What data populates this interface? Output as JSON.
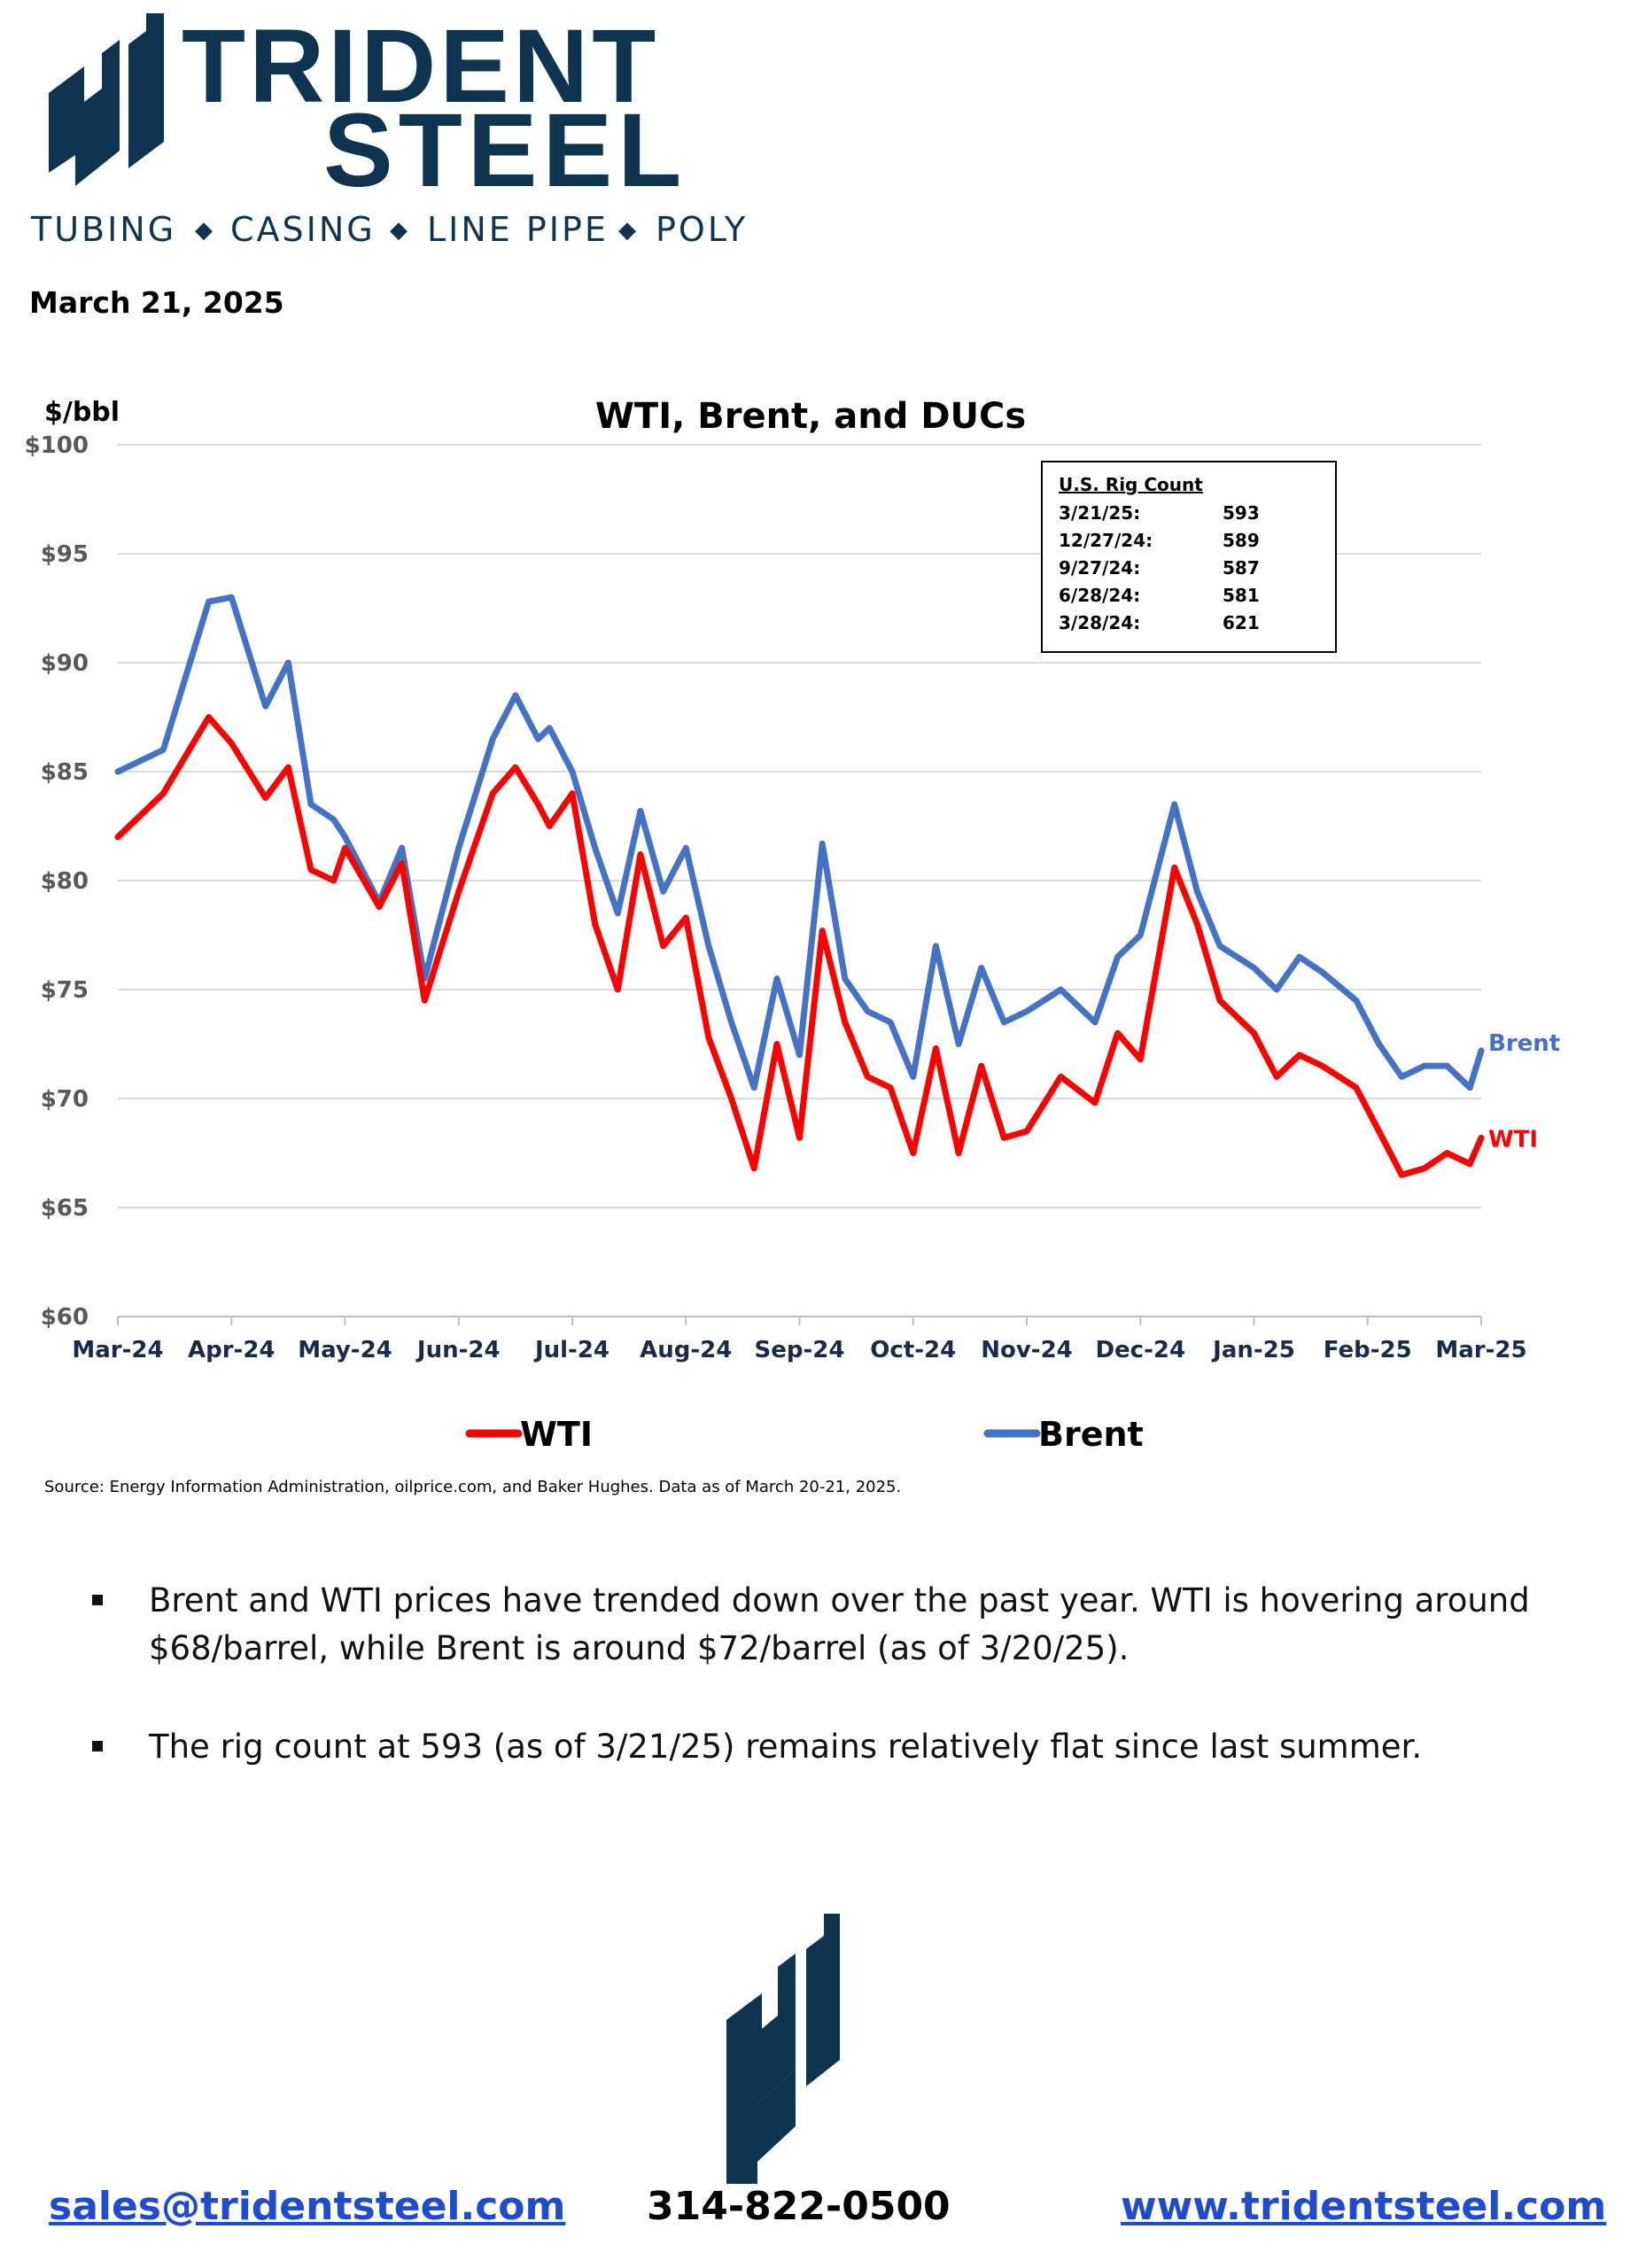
{
  "company": {
    "logo_name": "TRIDENT",
    "logo_name2": "STEEL",
    "tagline_items": [
      "TUBING",
      "CASING",
      "LINE PIPE",
      "POLY"
    ],
    "brand_color": "#0f3450"
  },
  "date": "March 21, 2025",
  "chart_data": {
    "type": "line",
    "title": "WTI, Brent, and DUCs",
    "ylabel": "$/bbl",
    "xlabel": "",
    "ylim": [
      60,
      100
    ],
    "y_ticks": [
      "$60",
      "$65",
      "$70",
      "$75",
      "$80",
      "$85",
      "$90",
      "$95",
      "$100"
    ],
    "x_ticks": [
      "Mar-24",
      "Apr-24",
      "May-24",
      "Jun-24",
      "Jul-24",
      "Aug-24",
      "Sep-24",
      "Oct-24",
      "Nov-24",
      "Dec-24",
      "Jan-25",
      "Feb-25",
      "Mar-25"
    ],
    "grid": true,
    "x_month_index": [
      0,
      0.4,
      0.8,
      1.0,
      1.3,
      1.5,
      1.7,
      1.9,
      2.0,
      2.3,
      2.5,
      2.7,
      3.0,
      3.3,
      3.5,
      3.7,
      3.8,
      4.0,
      4.2,
      4.4,
      4.6,
      4.8,
      5.0,
      5.2,
      5.4,
      5.6,
      5.8,
      6.0,
      6.2,
      6.4,
      6.6,
      6.8,
      7.0,
      7.2,
      7.4,
      7.6,
      7.8,
      8.0,
      8.3,
      8.6,
      8.8,
      9.0,
      9.3,
      9.5,
      9.7,
      10.0,
      10.2,
      10.4,
      10.6,
      10.9,
      11.1,
      11.3,
      11.5,
      11.7,
      11.9,
      12.0
    ],
    "series": [
      {
        "name": "WTI",
        "color": "#ff0000",
        "values": [
          82.0,
          84.0,
          87.5,
          86.3,
          83.8,
          85.2,
          80.5,
          80.0,
          81.5,
          78.8,
          80.8,
          74.5,
          79.5,
          84.0,
          85.2,
          83.5,
          82.5,
          84.0,
          78.0,
          75.0,
          81.2,
          77.0,
          78.3,
          72.8,
          70.0,
          66.8,
          72.5,
          68.2,
          77.7,
          73.5,
          71.0,
          70.5,
          67.5,
          72.3,
          67.5,
          71.5,
          68.2,
          68.5,
          71.0,
          69.8,
          73.0,
          71.8,
          80.6,
          78.0,
          74.5,
          73.0,
          71.0,
          72.0,
          71.5,
          70.5,
          68.5,
          66.5,
          66.8,
          67.5,
          67.0,
          68.2
        ],
        "end_label": "WTI"
      },
      {
        "name": "Brent",
        "color": "#4472c4",
        "values": [
          85.0,
          86.0,
          92.8,
          93.0,
          88.0,
          90.0,
          83.5,
          82.8,
          82.0,
          79.0,
          81.5,
          75.5,
          81.5,
          86.5,
          88.5,
          86.5,
          87.0,
          85.0,
          81.5,
          78.5,
          83.2,
          79.5,
          81.5,
          77.0,
          73.5,
          70.5,
          75.5,
          72.0,
          81.7,
          75.5,
          74.0,
          73.5,
          71.0,
          77.0,
          72.5,
          76.0,
          73.5,
          74.0,
          75.0,
          73.5,
          76.5,
          77.5,
          83.5,
          79.5,
          77.0,
          76.0,
          75.0,
          76.5,
          75.8,
          74.5,
          72.5,
          71.0,
          71.5,
          71.5,
          70.5,
          72.2
        ],
        "end_label": "Brent"
      }
    ]
  },
  "rig_box": {
    "title": "U.S. Rig Count",
    "rows": [
      {
        "date": "3/21/25:",
        "value": "593"
      },
      {
        "date": "12/27/24:",
        "value": "589"
      },
      {
        "date": "9/27/24:",
        "value": "587"
      },
      {
        "date": "6/28/24:",
        "value": "581"
      },
      {
        "date": "3/28/24:",
        "value": "621"
      }
    ]
  },
  "legend": [
    {
      "label": "WTI",
      "color": "#ff0000"
    },
    {
      "label": "Brent",
      "color": "#4472c4"
    }
  ],
  "source": "Source: Energy Information Administration, oilprice.com, and Baker Hughes.  Data as of March 20-21, 2025.",
  "bullets": [
    {
      "line1": "Brent and WTI prices have trended down over the past year.  WTI is hovering around",
      "line2": "$68/barrel, while Brent is around $72/barrel (as of 3/20/25)."
    },
    {
      "line1": "The rig count at 593 (as of 3/21/25) remains relatively flat since last summer.",
      "line2": ""
    }
  ],
  "footer": {
    "email": "sales@tridentsteel.com",
    "phone": "314-822-0500",
    "website": "www.tridentsteel.com"
  }
}
